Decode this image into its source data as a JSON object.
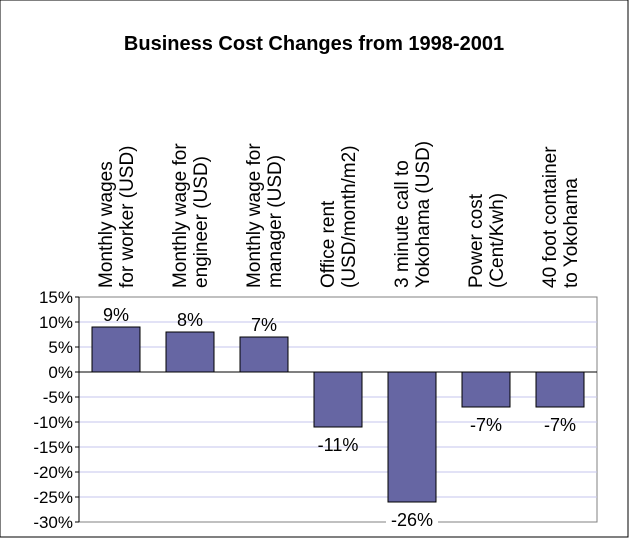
{
  "chart_data": {
    "type": "bar",
    "title": "Business Cost Changes from 1998-2001",
    "categories": [
      {
        "line1": "Monthly wages",
        "line2": "for worker (USD)"
      },
      {
        "line1": "Monthly wage for",
        "line2": "engineer (USD)"
      },
      {
        "line1": "Monthly wage for",
        "line2": "manager (USD)"
      },
      {
        "line1": "Office rent",
        "line2": "(USD/month/m2)"
      },
      {
        "line1": "3 minute call to",
        "line2": "Yokohama (USD)"
      },
      {
        "line1": "Power cost",
        "line2": "(Cent/Kwh)"
      },
      {
        "line1": "40 foot container",
        "line2": "to Yokohama"
      }
    ],
    "values": [
      9,
      8,
      7,
      -11,
      -26,
      -7,
      -7
    ],
    "data_labels": [
      "9%",
      "8%",
      "7%",
      "-11%",
      "-26%",
      "-7%",
      "-7%"
    ],
    "ylim": [
      -30,
      15
    ],
    "y_ticks": [
      15,
      10,
      5,
      0,
      -5,
      -10,
      -15,
      -20,
      -25,
      -30
    ],
    "y_tick_labels": [
      "15%",
      "10%",
      "5%",
      "0%",
      "-5%",
      "-10%",
      "-15%",
      "-20%",
      "-25%",
      "-30%"
    ],
    "xlabel": "",
    "ylabel": "",
    "grid": true,
    "legend": "none",
    "colors": {
      "bar_fill": "#6666a3",
      "bar_stroke": "#000000",
      "grid": "#c5c5ec",
      "axis": "#000000",
      "background": "#ffffff"
    }
  }
}
